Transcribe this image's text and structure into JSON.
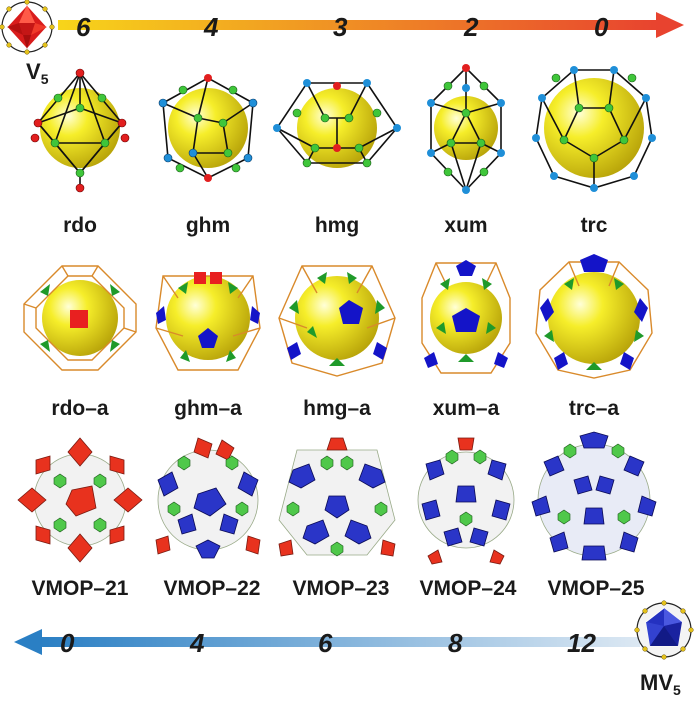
{
  "top_axis": {
    "corner_label": "V",
    "corner_sub": "5",
    "numbers": [
      "6",
      "4",
      "3",
      "2",
      "0"
    ],
    "color_start": "#f7d51a",
    "color_end": "#e8432f"
  },
  "bottom_axis": {
    "corner_label": "MV",
    "corner_sub": "5",
    "numbers": [
      "0",
      "4",
      "6",
      "8",
      "12"
    ],
    "color_start": "#2a7fc4",
    "color_end": "#dce8f3"
  },
  "rows": {
    "cages": [
      "rdo",
      "ghm",
      "hmg",
      "xum",
      "trc"
    ],
    "nets": [
      "rdo–a",
      "ghm–a",
      "hmg–a",
      "xum–a",
      "trc–a"
    ],
    "vmops": [
      "VMOP–21",
      "VMOP–22",
      "VMOP–23",
      "VMOP–24",
      "VMOP–25"
    ]
  },
  "colors": {
    "sphere": "#f2ea1c",
    "red_node": "#e21f1f",
    "blue_node": "#1f8fd8",
    "green_node": "#3fc63a",
    "edge": "#111111",
    "net_edge": "#d98a2b",
    "square": "#e82020",
    "pentagon": "#1414c8",
    "triangle": "#1f9a2a",
    "red_poly": "#e8321e",
    "blue_poly": "#2a35c8",
    "green_linker": "#4fc84a"
  }
}
